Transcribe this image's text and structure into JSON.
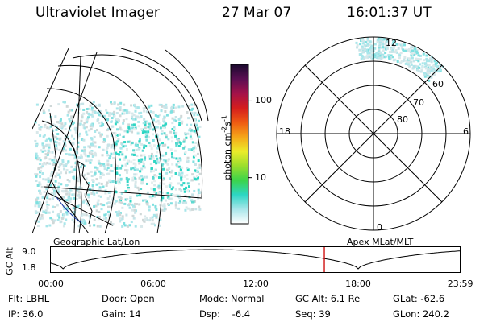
{
  "header": {
    "instrument": "Ultraviolet Imager",
    "date": "27 Mar 07",
    "time": "16:01:37 UT"
  },
  "colorbar": {
    "label_main": "photon cm",
    "label_exp1": "-2",
    "label_mid": "s",
    "label_exp2": "-1",
    "ticks": [
      {
        "value": 100,
        "label": "100"
      },
      {
        "value": 10,
        "label": "10"
      }
    ],
    "scale": "log",
    "stops": [
      "#1a0a2e",
      "#5a0f52",
      "#a3124a",
      "#d41d1d",
      "#ee5a12",
      "#f5a518",
      "#ecec2a",
      "#9cde2c",
      "#3cd44a",
      "#2dd6c4",
      "#a9e6ea",
      "#ffffff"
    ]
  },
  "polar": {
    "hour_labels": {
      "top": "12",
      "left": "18",
      "right": "6",
      "bottom": "0"
    },
    "lat_labels": [
      "60",
      "70",
      "80"
    ]
  },
  "left_panel": {
    "caption": "Geographic Lat/Lon"
  },
  "right_panel": {
    "caption": "Apex MLat/MLT"
  },
  "timeline": {
    "ylabel": "GC Alt",
    "y_ticks": [
      "9.0",
      "1.8"
    ],
    "x_ticks": [
      "00:00",
      "06:00",
      "12:00",
      "18:00",
      "23:59"
    ],
    "marker_color": "#cc0000",
    "marker_time": "16:01"
  },
  "status": [
    {
      "label": "Flt: LBHL"
    },
    {
      "label": "IP: 36.0"
    },
    {
      "label": "Door: Open"
    },
    {
      "label": "Gain: 14"
    },
    {
      "label": "Mode: Normal"
    },
    {
      "label": "Dsp:    -6.4"
    },
    {
      "label": "GC Alt: 6.1 Re"
    },
    {
      "label": "Seq: 39"
    },
    {
      "label": "GLat: -62.6"
    },
    {
      "label": "GLon: 240.2"
    }
  ]
}
